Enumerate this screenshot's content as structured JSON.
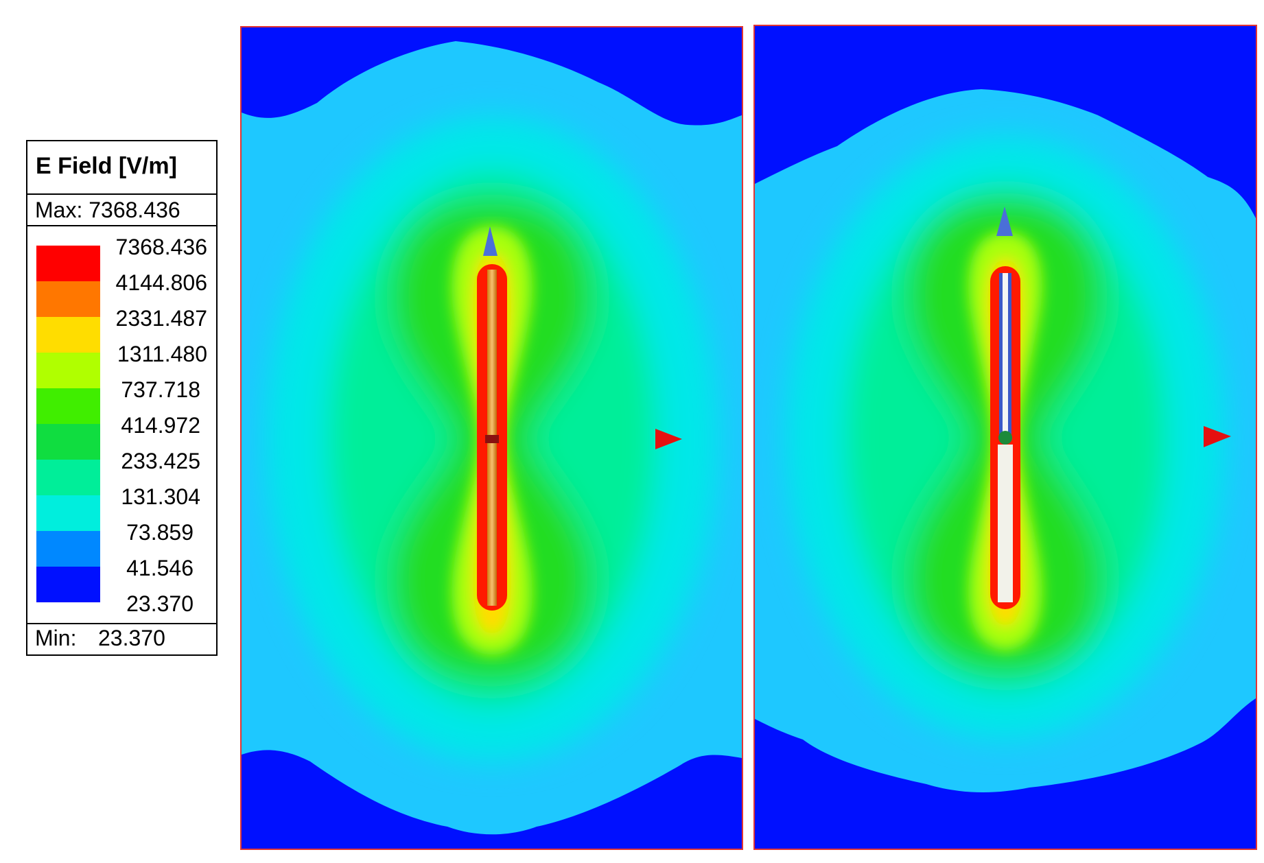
{
  "legend": {
    "title": "E Field [V/m]",
    "max_label": "Max:",
    "max_value": "7368.436",
    "min_label": "Min:",
    "min_value": "23.370",
    "levels": [
      {
        "value": "7368.436",
        "color": "#ff0000"
      },
      {
        "value": "4144.806",
        "color": "#ff7700"
      },
      {
        "value": "2331.487",
        "color": "#ffdd00"
      },
      {
        "value": "1311.480",
        "color": "#b0ff00"
      },
      {
        "value": "737.718",
        "color": "#40ee00"
      },
      {
        "value": "414.972",
        "color": "#10dd40"
      },
      {
        "value": "233.425",
        "color": "#00ee99"
      },
      {
        "value": "131.304",
        "color": "#00eedd"
      },
      {
        "value": "73.859",
        "color": "#0088ff"
      },
      {
        "value": "41.546",
        "color": "#0010ff"
      },
      {
        "value": "23.370",
        "color": null
      }
    ]
  },
  "panels": [
    {
      "name": "left-field-plot",
      "antenna_color": "#e0a030"
    },
    {
      "name": "right-field-plot",
      "antenna_color": "#ffffff"
    }
  ],
  "colors": {
    "outer": "#0010ff",
    "mid": "#1ec8ff",
    "cyan": "#00eedd",
    "aqua": "#00ee99",
    "green": "#20dd20",
    "lime": "#b0ff00",
    "yellow": "#ffdd00",
    "orange": "#ff7700",
    "red": "#ff0000",
    "frame": "#e23434",
    "arrow_blue": "#4a6fd8",
    "arrow_red": "#e51010"
  }
}
